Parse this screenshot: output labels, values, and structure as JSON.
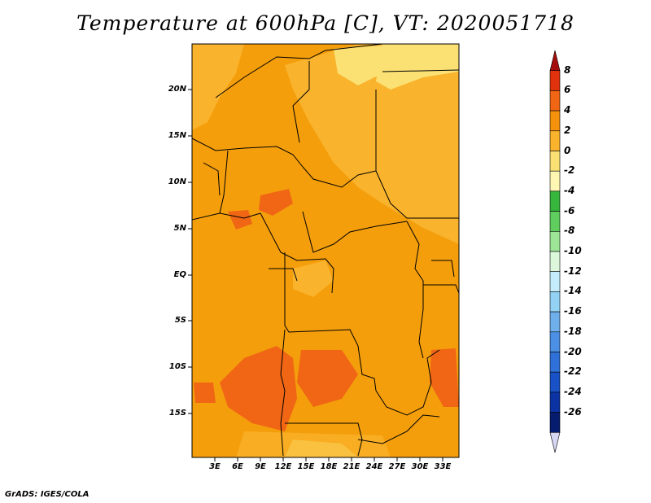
{
  "title": "Temperature at 600hPa [C], VT: 2020051718",
  "credit": "GrADS: IGES/COLA",
  "lat_labels": [
    "20N",
    "15N",
    "10N",
    "5N",
    "EQ",
    "5S",
    "10S",
    "15S"
  ],
  "lon_labels": [
    "3E",
    "6E",
    "9E",
    "12E",
    "15E",
    "18E",
    "21E",
    "24E",
    "27E",
    "30E",
    "33E"
  ],
  "colorbar": {
    "labels": [
      "8",
      "6",
      "4",
      "2",
      "0",
      "-2",
      "-4",
      "-6",
      "-8",
      "-10",
      "-12",
      "-14",
      "-16",
      "-18",
      "-20",
      "-22",
      "-24",
      "-26"
    ],
    "colors": [
      "#a50d0d",
      "#e0320c",
      "#f06614",
      "#f4920e",
      "#f9b32c",
      "#fbe174",
      "#fef7b4",
      "#36b63c",
      "#5fce5f",
      "#9ee697",
      "#ddf7dc",
      "#c5ecfb",
      "#94d2f5",
      "#6fb0ec",
      "#4b90e4",
      "#2f71d8",
      "#1852c6",
      "#0c33a4",
      "#061c6e",
      "#d7d7f4"
    ]
  },
  "map_fill": {
    "base": "#f49e0c",
    "warm": "#f06614",
    "cool": "#f9b32c",
    "cooler": "#fbe174"
  }
}
